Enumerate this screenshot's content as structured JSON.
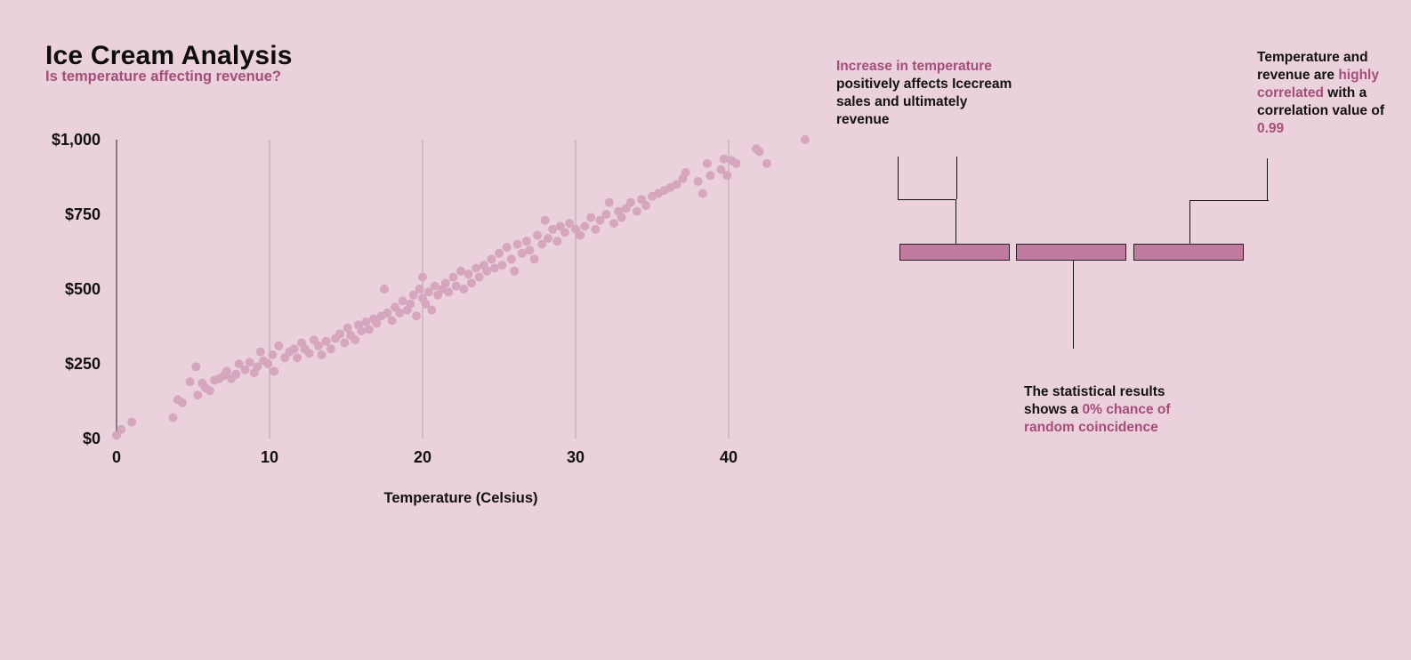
{
  "header": {
    "title": "Ice Cream Analysis",
    "subtitle": "Is temperature affecting revenue?"
  },
  "colors": {
    "background": "#EAD1DC",
    "accent": "#A64D79",
    "points": "#D5A6BD",
    "boxes": "#C27BA0"
  },
  "annotations": {
    "increase": {
      "highlight": "Increase in temperature",
      "text": "positively affects Icecream sales and ultimately revenue"
    },
    "correlation": {
      "text_1": "Temperature and revenue are",
      "highlight_1": "highly correlated",
      "text_2": "with a correlation value of",
      "highlight_2": "0.99"
    },
    "statistics": {
      "text": "The statistical results shows a",
      "highlight": "0% chance of random coincidence"
    }
  },
  "chart_data": {
    "type": "scatter",
    "title": "Ice Cream Analysis",
    "subtitle": "Is temperature affecting revenue?",
    "xlabel": "Temperature (Celsius)",
    "ylabel": "",
    "xlim": [
      0,
      45
    ],
    "ylim": [
      0,
      1000
    ],
    "x_ticks": [
      0,
      10,
      20,
      30,
      40
    ],
    "x_tick_labels": [
      "0",
      "10",
      "20",
      "30",
      "40"
    ],
    "y_ticks": [
      0,
      250,
      500,
      750,
      1000
    ],
    "y_tick_labels": [
      "$0",
      "$250",
      "$500",
      "$750",
      "$1,000"
    ],
    "grid": "vertical",
    "point_color": "#D5A6BD",
    "series": [
      {
        "name": "",
        "points": [
          [
            0.0,
            10
          ],
          [
            0.3,
            30
          ],
          [
            1.0,
            55
          ],
          [
            3.7,
            70
          ],
          [
            4.0,
            130
          ],
          [
            4.3,
            120
          ],
          [
            4.8,
            190
          ],
          [
            5.2,
            240
          ],
          [
            5.3,
            145
          ],
          [
            5.6,
            185
          ],
          [
            5.8,
            170
          ],
          [
            6.1,
            160
          ],
          [
            6.4,
            195
          ],
          [
            6.7,
            200
          ],
          [
            7.0,
            210
          ],
          [
            7.2,
            225
          ],
          [
            7.5,
            200
          ],
          [
            7.8,
            215
          ],
          [
            8.0,
            250
          ],
          [
            8.4,
            230
          ],
          [
            8.7,
            255
          ],
          [
            9.0,
            220
          ],
          [
            9.2,
            240
          ],
          [
            9.4,
            290
          ],
          [
            9.6,
            260
          ],
          [
            9.9,
            250
          ],
          [
            10.2,
            280
          ],
          [
            10.3,
            225
          ],
          [
            10.6,
            310
          ],
          [
            11.0,
            270
          ],
          [
            11.3,
            290
          ],
          [
            11.6,
            300
          ],
          [
            11.8,
            270
          ],
          [
            12.1,
            320
          ],
          [
            12.3,
            300
          ],
          [
            12.6,
            285
          ],
          [
            12.9,
            330
          ],
          [
            13.2,
            310
          ],
          [
            13.4,
            280
          ],
          [
            13.7,
            325
          ],
          [
            14.0,
            300
          ],
          [
            14.3,
            335
          ],
          [
            14.6,
            350
          ],
          [
            14.9,
            320
          ],
          [
            15.1,
            370
          ],
          [
            15.3,
            345
          ],
          [
            15.6,
            330
          ],
          [
            15.8,
            380
          ],
          [
            16.0,
            360
          ],
          [
            16.3,
            390
          ],
          [
            16.5,
            365
          ],
          [
            16.8,
            400
          ],
          [
            17.0,
            385
          ],
          [
            17.3,
            410
          ],
          [
            17.5,
            500
          ],
          [
            17.7,
            420
          ],
          [
            18.0,
            395
          ],
          [
            18.2,
            440
          ],
          [
            18.5,
            420
          ],
          [
            18.7,
            460
          ],
          [
            19.0,
            430
          ],
          [
            19.2,
            450
          ],
          [
            19.4,
            480
          ],
          [
            19.6,
            410
          ],
          [
            19.8,
            500
          ],
          [
            20.0,
            470
          ],
          [
            20.0,
            540
          ],
          [
            20.2,
            450
          ],
          [
            20.4,
            490
          ],
          [
            20.6,
            430
          ],
          [
            20.8,
            510
          ],
          [
            21.0,
            480
          ],
          [
            21.3,
            500
          ],
          [
            21.5,
            520
          ],
          [
            21.7,
            490
          ],
          [
            22.0,
            540
          ],
          [
            22.2,
            510
          ],
          [
            22.5,
            560
          ],
          [
            22.7,
            500
          ],
          [
            23.0,
            550
          ],
          [
            23.2,
            520
          ],
          [
            23.5,
            570
          ],
          [
            23.7,
            540
          ],
          [
            24.0,
            580
          ],
          [
            24.2,
            560
          ],
          [
            24.5,
            600
          ],
          [
            24.7,
            570
          ],
          [
            25.0,
            620
          ],
          [
            25.2,
            580
          ],
          [
            25.5,
            640
          ],
          [
            25.8,
            600
          ],
          [
            26.0,
            560
          ],
          [
            26.2,
            650
          ],
          [
            26.5,
            620
          ],
          [
            26.8,
            660
          ],
          [
            27.0,
            630
          ],
          [
            27.3,
            600
          ],
          [
            27.5,
            680
          ],
          [
            27.8,
            650
          ],
          [
            28.0,
            730
          ],
          [
            28.2,
            670
          ],
          [
            28.5,
            700
          ],
          [
            28.8,
            660
          ],
          [
            29.0,
            710
          ],
          [
            29.3,
            690
          ],
          [
            29.6,
            720
          ],
          [
            30.0,
            700
          ],
          [
            30.3,
            680
          ],
          [
            30.6,
            710
          ],
          [
            31.0,
            740
          ],
          [
            31.3,
            700
          ],
          [
            31.6,
            730
          ],
          [
            32.0,
            750
          ],
          [
            32.2,
            790
          ],
          [
            32.5,
            720
          ],
          [
            32.8,
            760
          ],
          [
            33.0,
            740
          ],
          [
            33.3,
            770
          ],
          [
            33.6,
            790
          ],
          [
            34.0,
            760
          ],
          [
            34.3,
            800
          ],
          [
            34.6,
            780
          ],
          [
            35.0,
            810
          ],
          [
            35.4,
            820
          ],
          [
            35.8,
            830
          ],
          [
            36.2,
            840
          ],
          [
            36.6,
            850
          ],
          [
            37.0,
            870
          ],
          [
            37.2,
            890
          ],
          [
            38.0,
            860
          ],
          [
            38.3,
            820
          ],
          [
            38.6,
            920
          ],
          [
            38.8,
            880
          ],
          [
            39.5,
            900
          ],
          [
            39.7,
            935
          ],
          [
            39.9,
            880
          ],
          [
            40.2,
            930
          ],
          [
            40.5,
            920
          ],
          [
            41.8,
            970
          ],
          [
            42.0,
            960
          ],
          [
            42.5,
            920
          ],
          [
            45.0,
            1000
          ]
        ]
      }
    ]
  }
}
